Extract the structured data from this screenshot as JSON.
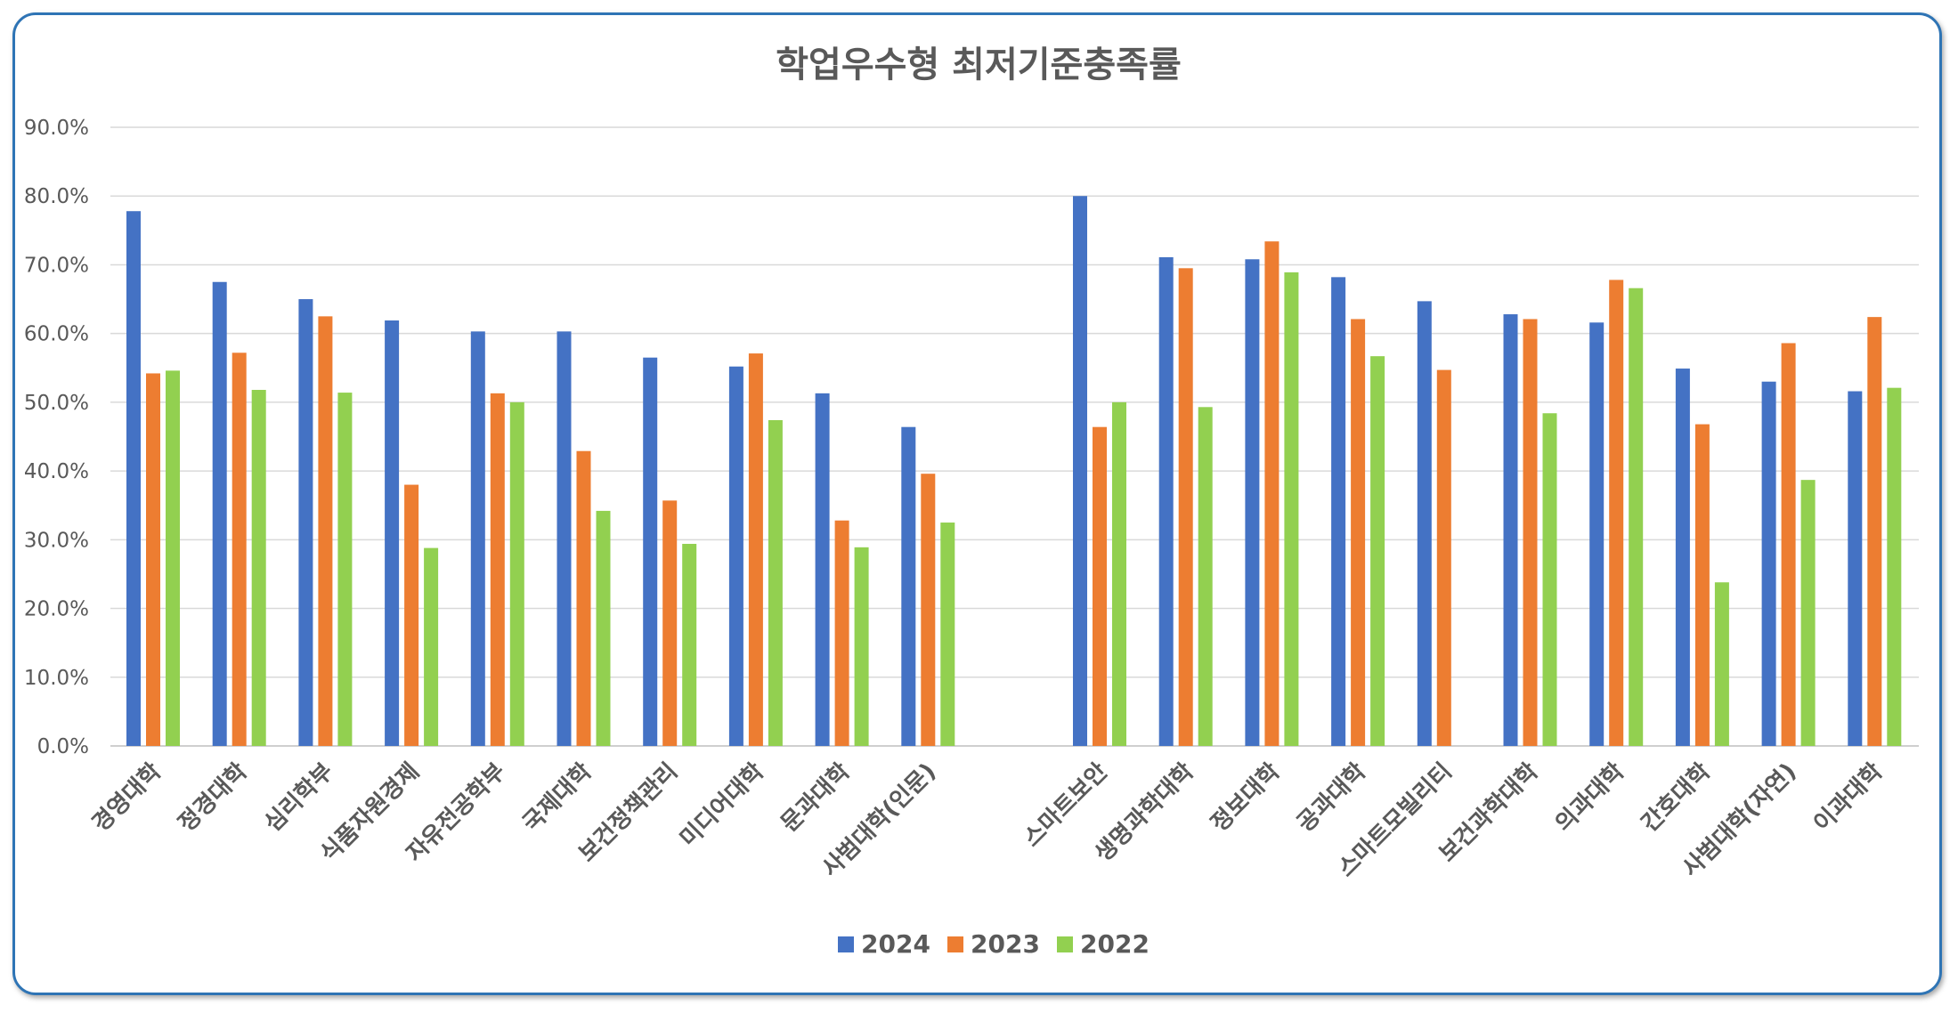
{
  "chart_data": {
    "type": "bar",
    "title": "학업우수형 최저기준충족률",
    "xlabel": "",
    "ylabel": "",
    "ylim": [
      0,
      90
    ],
    "yticks": [
      "0.0%",
      "10.0%",
      "20.0%",
      "30.0%",
      "40.0%",
      "50.0%",
      "60.0%",
      "70.0%",
      "80.0%",
      "90.0%"
    ],
    "grid": true,
    "legend_position": "bottom",
    "groups": [
      [
        "경영대학",
        "정경대학",
        "심리학부",
        "식품자원경제",
        "자유전공학부",
        "국제대학",
        "보건정책관리",
        "미디어대학",
        "문과대학",
        "사범대학(인문)"
      ],
      [
        "스마트보안",
        "생명과학대학",
        "정보대학",
        "공과대학",
        "스마트모빌리티",
        "보건과학대학",
        "의과대학",
        "간호대학",
        "사범대학(자연)",
        "이과대학"
      ]
    ],
    "categories": [
      "경영대학",
      "정경대학",
      "심리학부",
      "식품자원경제",
      "자유전공학부",
      "국제대학",
      "보건정책관리",
      "미디어대학",
      "문과대학",
      "사범대학(인문)",
      "스마트보안",
      "생명과학대학",
      "정보대학",
      "공과대학",
      "스마트모빌리티",
      "보건과학대학",
      "의과대학",
      "간호대학",
      "사범대학(자연)",
      "이과대학"
    ],
    "series": [
      {
        "name": "2024",
        "color": "#4472c4",
        "values": [
          77.8,
          67.5,
          65.0,
          61.9,
          60.3,
          60.3,
          56.5,
          55.2,
          51.3,
          46.4,
          80.0,
          71.1,
          70.8,
          68.2,
          64.7,
          62.8,
          61.6,
          54.9,
          53.0,
          51.6
        ]
      },
      {
        "name": "2023",
        "color": "#ed7d31",
        "values": [
          54.2,
          57.2,
          62.5,
          38.0,
          51.3,
          42.9,
          35.7,
          57.1,
          32.8,
          39.6,
          46.4,
          69.5,
          73.4,
          62.1,
          54.7,
          62.1,
          67.8,
          46.8,
          58.6,
          62.4
        ]
      },
      {
        "name": "2022",
        "color": "#92d050",
        "values": [
          54.6,
          51.8,
          51.4,
          28.8,
          50.0,
          34.2,
          29.4,
          47.4,
          28.9,
          32.5,
          50.0,
          49.3,
          68.9,
          56.7,
          null,
          48.4,
          66.6,
          23.8,
          38.7,
          52.1
        ]
      }
    ]
  }
}
